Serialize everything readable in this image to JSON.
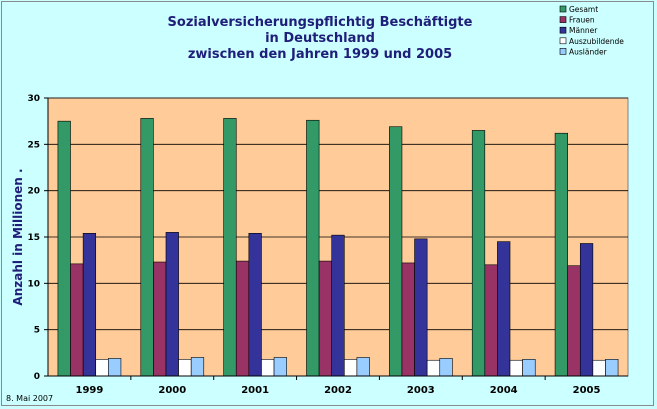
{
  "chart_data": {
    "type": "bar",
    "title_lines": [
      "Sozialversicherungspflichtig Beschäftigte",
      "in Deutschland",
      "zwischen den Jahren 1999 und 2005"
    ],
    "ylabel": "Anzahl in Millionen .",
    "xlabel": "",
    "categories": [
      "1999",
      "2000",
      "2001",
      "2002",
      "2003",
      "2004",
      "2005"
    ],
    "ylim": [
      0,
      30
    ],
    "yticks": [
      "0",
      "5",
      "10",
      "15",
      "20",
      "25",
      "30"
    ],
    "grid": true,
    "legend_position": "top-right",
    "series": [
      {
        "name": "Gesamt",
        "color": "#339966",
        "values": [
          27.5,
          27.8,
          27.8,
          27.6,
          26.9,
          26.5,
          26.2
        ]
      },
      {
        "name": "Frauen",
        "color": "#993366",
        "values": [
          12.1,
          12.3,
          12.4,
          12.4,
          12.2,
          12.0,
          11.9
        ]
      },
      {
        "name": "Männer",
        "color": "#333399",
        "values": [
          15.4,
          15.5,
          15.4,
          15.2,
          14.8,
          14.5,
          14.3
        ]
      },
      {
        "name": "Auszubildende",
        "color": "#ffffff",
        "values": [
          1.8,
          1.8,
          1.8,
          1.8,
          1.7,
          1.7,
          1.7
        ]
      },
      {
        "name": "Ausländer",
        "color": "#99ccff",
        "values": [
          1.9,
          2.0,
          2.0,
          2.0,
          1.9,
          1.8,
          1.8
        ]
      }
    ],
    "plot_background": "#ffcc99"
  },
  "footer": {
    "date": "8. Mai 2007"
  }
}
